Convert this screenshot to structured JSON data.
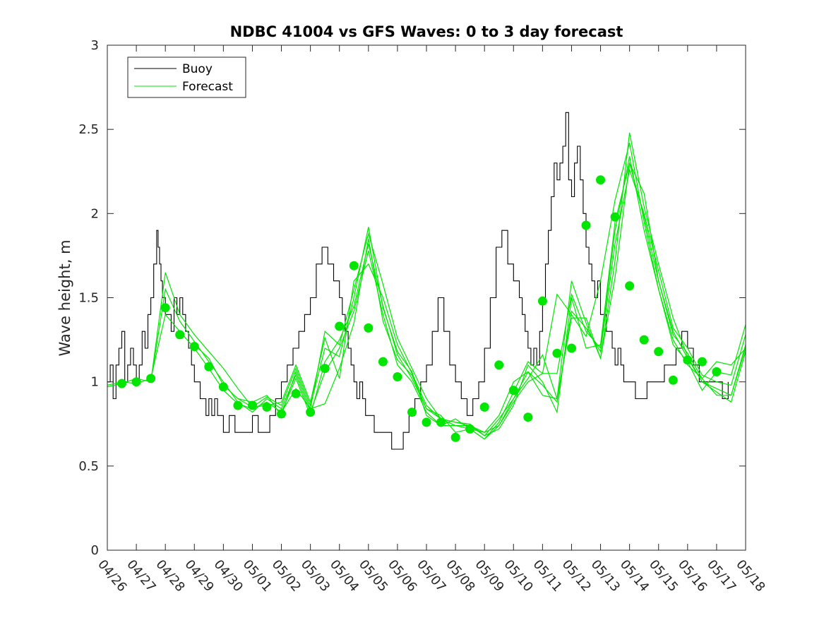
{
  "chart_data": {
    "type": "line",
    "title": "NDBC 41004 vs GFS Waves: 0 to 3 day forecast",
    "ylabel": "Wave height, m",
    "xlabel": "",
    "ylim": [
      0,
      3
    ],
    "yticks": [
      0,
      0.5,
      1,
      1.5,
      2,
      2.5,
      3
    ],
    "xlim": [
      0,
      22
    ],
    "xtick_labels": [
      "04/26",
      "04/27",
      "04/28",
      "04/29",
      "04/30",
      "05/01",
      "05/02",
      "05/03",
      "05/04",
      "05/05",
      "05/06",
      "05/07",
      "05/08",
      "05/09",
      "05/10",
      "05/11",
      "05/12",
      "05/13",
      "05/14",
      "05/15",
      "05/16",
      "05/17",
      "05/18"
    ],
    "grid": false,
    "legend": {
      "position": "top-left",
      "entries": [
        "Buoy",
        "Forecast"
      ]
    },
    "colors": {
      "buoy": "#000000",
      "forecast": "#00e600",
      "axis": "#262626"
    },
    "buoy": {
      "name": "Buoy",
      "x": [
        0,
        0.1,
        0.2,
        0.3,
        0.4,
        0.5,
        0.6,
        0.7,
        0.8,
        0.9,
        1.0,
        1.1,
        1.2,
        1.3,
        1.4,
        1.5,
        1.6,
        1.7,
        1.75,
        1.8,
        1.85,
        1.9,
        2.0,
        2.1,
        2.2,
        2.3,
        2.4,
        2.5,
        2.6,
        2.7,
        2.8,
        2.9,
        3.0,
        3.1,
        3.2,
        3.3,
        3.4,
        3.5,
        3.6,
        3.7,
        3.8,
        3.9,
        4.0,
        4.2,
        4.4,
        4.6,
        4.8,
        5.0,
        5.2,
        5.4,
        5.6,
        5.8,
        6.0,
        6.2,
        6.4,
        6.6,
        6.8,
        7.0,
        7.2,
        7.4,
        7.6,
        7.8,
        8.0,
        8.1,
        8.2,
        8.3,
        8.4,
        8.5,
        8.6,
        8.7,
        8.8,
        8.9,
        9.0,
        9.2,
        9.4,
        9.6,
        9.8,
        10.0,
        10.2,
        10.4,
        10.6,
        10.8,
        11.0,
        11.2,
        11.4,
        11.6,
        11.8,
        12.0,
        12.2,
        12.4,
        12.6,
        12.8,
        13.0,
        13.2,
        13.4,
        13.6,
        13.8,
        14.0,
        14.2,
        14.3,
        14.4,
        14.5,
        14.6,
        14.7,
        14.8,
        14.9,
        15.0,
        15.1,
        15.2,
        15.3,
        15.4,
        15.5,
        15.6,
        15.7,
        15.8,
        15.9,
        16.0,
        16.1,
        16.2,
        16.3,
        16.4,
        16.5,
        16.6,
        16.7,
        16.8,
        16.9,
        17.0,
        17.1,
        17.2,
        17.3,
        17.4,
        17.5,
        17.6,
        17.7,
        17.8,
        17.9,
        18.0,
        18.2,
        18.4,
        18.6,
        18.8,
        19.0,
        19.2,
        19.4,
        19.6,
        19.8,
        20.0,
        20.2,
        20.4,
        20.6,
        20.8,
        21.0,
        21.2,
        21.4
      ],
      "values": [
        1.0,
        1.1,
        0.9,
        1.1,
        1.2,
        1.3,
        1.0,
        1.1,
        1.2,
        1.1,
        1.0,
        1.1,
        1.3,
        1.2,
        1.4,
        1.5,
        1.7,
        1.9,
        1.8,
        1.7,
        1.6,
        1.5,
        1.4,
        1.4,
        1.3,
        1.5,
        1.4,
        1.5,
        1.4,
        1.3,
        1.2,
        1.1,
        1.0,
        1.0,
        0.9,
        0.9,
        0.8,
        0.9,
        0.8,
        0.9,
        0.8,
        0.8,
        0.7,
        0.8,
        0.7,
        0.7,
        0.7,
        0.8,
        0.7,
        0.7,
        0.8,
        0.9,
        1.0,
        1.1,
        1.2,
        1.3,
        1.4,
        1.5,
        1.7,
        1.8,
        1.7,
        1.6,
        1.5,
        1.4,
        1.3,
        1.2,
        1.1,
        1.0,
        0.9,
        1.0,
        0.9,
        0.8,
        0.8,
        0.7,
        0.7,
        0.7,
        0.6,
        0.6,
        0.7,
        0.8,
        0.9,
        1.0,
        1.1,
        1.3,
        1.5,
        1.3,
        1.1,
        1.0,
        0.9,
        0.8,
        0.9,
        1.0,
        1.2,
        1.5,
        1.8,
        1.9,
        1.7,
        1.6,
        1.5,
        1.4,
        1.3,
        1.2,
        1.1,
        1.2,
        1.1,
        1.3,
        1.5,
        1.7,
        1.9,
        2.1,
        2.3,
        2.2,
        2.3,
        2.4,
        2.6,
        2.2,
        2.1,
        2.3,
        2.4,
        2.2,
        2.0,
        1.8,
        1.7,
        1.6,
        1.5,
        1.6,
        1.4,
        1.4,
        1.3,
        1.3,
        1.2,
        1.1,
        1.2,
        1.1,
        1.0,
        1.0,
        1.0,
        0.9,
        0.9,
        1.0,
        1.0,
        1.0,
        1.1,
        1.1,
        1.2,
        1.3,
        1.2,
        1.1,
        1.0,
        1.0,
        1.0,
        1.0,
        0.9,
        1.0
      ]
    },
    "forecast_series": [
      {
        "x": [
          0,
          0.5,
          1,
          1.5,
          2,
          2.5,
          3,
          3.5,
          4,
          4.5,
          5,
          5.5,
          6,
          6.5,
          7,
          7.5,
          8,
          8.5,
          9,
          9.5,
          10,
          10.5,
          11,
          11.5,
          12,
          12.5,
          13,
          13.5,
          14,
          14.5,
          15,
          15.5,
          16,
          16.5,
          17,
          17.5,
          18,
          18.5,
          19,
          19.5,
          20,
          20.5,
          21,
          21.5,
          22
        ],
        "values": [
          0.98,
          1.0,
          0.99,
          1.02,
          1.4,
          1.3,
          1.2,
          1.08,
          0.95,
          0.87,
          0.84,
          0.88,
          0.82,
          0.96,
          0.84,
          0.87,
          1.08,
          1.35,
          1.85,
          1.36,
          1.13,
          1.04,
          0.84,
          0.78,
          0.76,
          0.75,
          0.68,
          0.72,
          0.86,
          1.1,
          1.0,
          0.82,
          1.5,
          1.2,
          1.22,
          1.95,
          2.3,
          1.98,
          1.6,
          1.28,
          1.17,
          1.02,
          1.12,
          1.1,
          1.2
        ]
      },
      {
        "x": [
          1.5,
          2,
          2.5,
          3,
          3.5,
          4,
          4.5,
          5,
          5.5,
          6,
          6.5,
          7,
          7.5,
          8,
          8.5,
          9,
          9.5,
          10,
          10.5,
          11,
          11.5,
          12,
          12.5,
          13,
          13.5,
          14,
          14.5,
          15,
          15.5,
          16,
          16.5,
          17,
          17.5,
          18,
          18.5,
          19,
          19.5,
          20,
          20.5,
          21,
          21.5,
          22
        ],
        "values": [
          1.0,
          1.65,
          1.4,
          1.28,
          1.18,
          1.08,
          0.96,
          0.85,
          0.91,
          0.86,
          1.08,
          0.86,
          1.2,
          1.15,
          1.5,
          1.92,
          1.44,
          1.18,
          1.06,
          0.8,
          0.74,
          0.74,
          0.72,
          0.66,
          0.76,
          0.94,
          1.12,
          1.05,
          1.52,
          1.4,
          1.27,
          1.6,
          2.08,
          2.42,
          1.95,
          1.55,
          1.22,
          1.12,
          0.95,
          1.06,
          1.04,
          1.34
        ]
      },
      {
        "x": [
          0,
          0.5,
          1,
          1.5,
          2,
          2.5,
          3,
          3.5,
          4,
          4.5,
          5,
          5.5,
          6,
          6.5,
          7,
          7.5,
          8,
          8.5,
          9,
          9.5,
          10,
          10.5,
          11,
          11.5,
          12,
          12.5,
          13,
          13.5,
          14,
          14.5,
          15,
          15.5,
          16,
          16.5,
          17,
          17.5,
          18,
          18.5,
          19,
          19.5,
          20,
          20.5,
          21,
          21.5,
          22
        ],
        "values": [
          0.97,
          0.99,
          1.02,
          1.0,
          1.55,
          1.36,
          1.24,
          1.12,
          1.0,
          0.88,
          0.82,
          0.9,
          0.84,
          1.04,
          0.82,
          1.06,
          1.2,
          1.42,
          1.78,
          1.4,
          1.1,
          1.0,
          0.82,
          0.74,
          0.78,
          0.72,
          0.7,
          0.74,
          0.9,
          1.06,
          0.98,
          0.88,
          1.42,
          1.32,
          1.18,
          1.82,
          2.26,
          2.0,
          1.66,
          1.32,
          1.2,
          1.04,
          1.0,
          0.98,
          1.28
        ]
      },
      {
        "x": [
          3,
          3.5,
          4,
          4.5,
          5,
          5.5,
          6,
          6.5,
          7,
          7.5,
          8,
          8.5,
          9,
          9.5,
          10,
          10.5,
          11,
          11.5,
          12,
          12.5,
          13,
          13.5,
          14,
          14.5,
          15,
          15.5,
          16,
          16.5,
          17,
          17.5,
          18,
          18.5,
          19,
          19.5,
          20,
          20.5,
          21,
          21.5,
          22
        ],
        "values": [
          1.22,
          1.14,
          0.98,
          0.9,
          0.85,
          0.86,
          0.88,
          1.1,
          0.88,
          1.26,
          1.02,
          1.6,
          1.7,
          1.5,
          1.22,
          1.05,
          0.86,
          0.78,
          0.74,
          0.74,
          0.7,
          0.8,
          1.0,
          1.06,
          0.92,
          0.9,
          1.38,
          1.38,
          1.14,
          1.72,
          2.48,
          2.04,
          1.7,
          1.38,
          1.15,
          1.0,
          0.96,
          0.92,
          1.22
        ]
      },
      {
        "x": [
          4.5,
          5,
          5.5,
          6,
          6.5,
          7,
          7.5,
          8,
          8.5,
          9,
          9.5,
          10,
          10.5,
          11,
          11.5,
          12,
          12.5,
          13,
          13.5,
          14,
          14.5,
          15,
          15.5,
          16,
          16.5,
          17,
          17.5,
          18,
          18.5,
          19,
          19.5,
          20,
          20.5,
          21,
          21.5,
          22
        ],
        "values": [
          0.9,
          0.88,
          0.92,
          0.8,
          1.06,
          0.84,
          1.3,
          1.22,
          1.55,
          1.88,
          1.58,
          1.26,
          1.08,
          0.9,
          0.78,
          0.76,
          0.74,
          0.68,
          0.78,
          0.9,
          1.02,
          1.16,
          0.9,
          1.6,
          1.35,
          1.14,
          1.62,
          2.3,
          2.12,
          1.6,
          1.3,
          1.14,
          1.0,
          0.94,
          0.88,
          1.18
        ]
      },
      {
        "x": [
          6,
          6.5,
          7,
          7.5,
          8,
          8.5,
          9,
          9.5,
          10,
          10.5,
          11,
          11.5,
          12,
          12.5,
          13,
          13.5,
          14,
          14.5,
          15,
          15.5,
          16,
          16.5,
          17,
          17.5,
          18,
          18.5,
          19,
          19.5,
          20,
          20.5,
          21,
          21.5,
          22
        ],
        "values": [
          0.82,
          1.02,
          0.8,
          1.12,
          1.25,
          1.45,
          1.82,
          1.45,
          1.16,
          1.02,
          0.84,
          0.8,
          0.7,
          0.72,
          0.66,
          0.74,
          0.88,
          1.0,
          1.05,
          1.05,
          1.52,
          1.3,
          1.2,
          1.9,
          2.34,
          1.9,
          1.55,
          1.25,
          1.1,
          1.02,
          0.92,
          0.92,
          1.2
        ]
      }
    ],
    "forecast_markers": {
      "x": [
        0.5,
        1.0,
        1.5,
        2.0,
        2.5,
        3.0,
        3.5,
        4.0,
        4.5,
        5.0,
        5.5,
        6.0,
        6.5,
        7.0,
        7.5,
        8.0,
        8.5,
        9.0,
        9.5,
        10.0,
        10.5,
        11.0,
        11.5,
        12.0,
        12.5,
        13.0,
        13.5,
        14.0,
        14.5,
        15.0,
        15.5,
        16.0,
        16.5,
        17.0,
        17.5,
        18.0,
        18.5,
        19.0,
        19.5,
        20.0,
        20.5,
        21.0
      ],
      "values": [
        0.99,
        1.0,
        1.02,
        1.44,
        1.28,
        1.21,
        1.09,
        0.97,
        0.86,
        0.86,
        0.85,
        0.81,
        0.93,
        0.82,
        1.08,
        1.33,
        1.69,
        1.32,
        1.12,
        1.03,
        0.82,
        0.76,
        0.76,
        0.67,
        0.72,
        0.85,
        1.1,
        0.95,
        0.79,
        1.48,
        1.17,
        1.2,
        1.93,
        2.2,
        1.98,
        1.57,
        1.25,
        1.18,
        1.01,
        1.13,
        1.12,
        1.06
      ]
    }
  }
}
